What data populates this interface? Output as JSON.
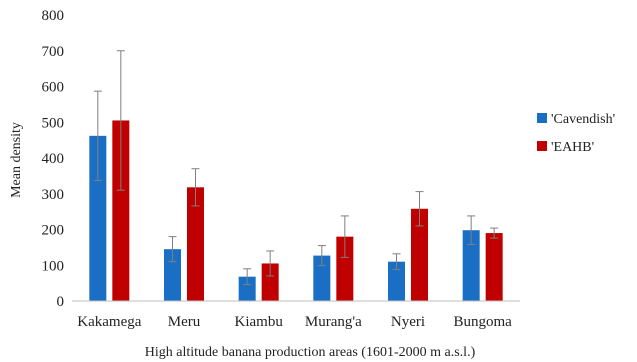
{
  "chart_data": {
    "type": "bar",
    "title": "",
    "xlabel": "High altitude banana production areas (1601-2000 m a.s.l.)",
    "ylabel": "Mean density",
    "ylim": [
      0,
      800
    ],
    "yticks": [
      "0",
      "100",
      "200",
      "300",
      "400",
      "500",
      "600",
      "700",
      "800"
    ],
    "grid": false,
    "legend_position": "right",
    "categories": [
      "Kakamega",
      "Meru",
      "Kiambu",
      "Murang'a",
      "Nyeri",
      "Bungoma"
    ],
    "series": [
      {
        "name": "'Cavendish'",
        "color": "#1a6fc4",
        "values": [
          462,
          145,
          68,
          127,
          110,
          198
        ],
        "error": [
          125,
          35,
          22,
          28,
          22,
          40
        ]
      },
      {
        "name": "'EAHB'",
        "color": "#c00000",
        "values": [
          505,
          318,
          105,
          180,
          258,
          190
        ],
        "error": [
          195,
          52,
          35,
          58,
          48,
          14
        ]
      }
    ]
  }
}
